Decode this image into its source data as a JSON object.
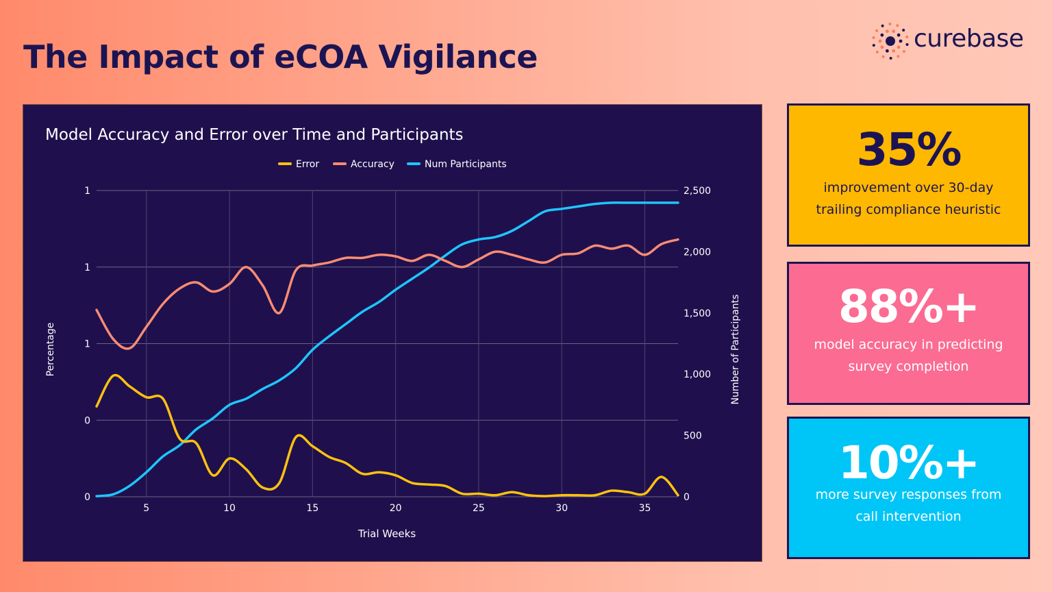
{
  "header": {
    "title": "The Impact of eCOA Vigilance"
  },
  "logo": {
    "text": "curebase",
    "icon": "sunburst-dots-icon",
    "color": "#1c1452",
    "accent": "#ff7a5c"
  },
  "stats": [
    {
      "value": "35%",
      "description": "improvement over 30-day trailing compliance heuristic",
      "color": "#ffb800"
    },
    {
      "value": "88%+",
      "description": "model accuracy in predicting survey completion",
      "color": "#fb6b92"
    },
    {
      "value": "10%+",
      "description": "more survey responses from call intervention",
      "color": "#00c5f7"
    }
  ],
  "chart_data": {
    "type": "line",
    "title": "Model Accuracy and Error over Time and Participants",
    "xlabel": "Trial Weeks",
    "ylabel": "Percentage",
    "y2label": "Number of Participants",
    "xlim": [
      2,
      37
    ],
    "ylim": [
      0,
      1
    ],
    "y2lim": [
      0,
      2500
    ],
    "x_ticks": [
      5,
      10,
      15,
      20,
      25,
      30,
      35
    ],
    "y_ticks": [
      0,
      0.25,
      0.5,
      0.75,
      1
    ],
    "y_tick_labels": [
      "0",
      "0",
      "1",
      "1",
      "1"
    ],
    "y2_ticks": [
      0,
      500,
      1000,
      1500,
      2000,
      2500
    ],
    "y2_tick_labels": [
      "0",
      "500",
      "1,000",
      "1,500",
      "2,000",
      "2,500"
    ],
    "legend_position": "top",
    "grid": true,
    "x": [
      2,
      3,
      4,
      5,
      6,
      7,
      8,
      9,
      10,
      11,
      12,
      13,
      14,
      15,
      16,
      17,
      18,
      19,
      20,
      21,
      22,
      23,
      24,
      25,
      26,
      27,
      28,
      29,
      30,
      31,
      32,
      33,
      34,
      35,
      36,
      37
    ],
    "series": [
      {
        "name": "Error",
        "axis": "left",
        "color": "#ffc20e",
        "values": [
          0.295,
          0.395,
          0.36,
          0.325,
          0.32,
          0.19,
          0.175,
          0.07,
          0.125,
          0.09,
          0.03,
          0.045,
          0.195,
          0.165,
          0.13,
          0.11,
          0.075,
          0.08,
          0.07,
          0.045,
          0.04,
          0.035,
          0.01,
          0.01,
          0.005,
          0.015,
          0.005,
          0.002,
          0.005,
          0.005,
          0.005,
          0.02,
          0.015,
          0.01,
          0.065,
          0.005
        ]
      },
      {
        "name": "Accuracy",
        "axis": "left",
        "color": "#f98c73",
        "values": [
          0.61,
          0.515,
          0.485,
          0.555,
          0.63,
          0.68,
          0.7,
          0.67,
          0.695,
          0.75,
          0.69,
          0.6,
          0.74,
          0.755,
          0.765,
          0.78,
          0.78,
          0.79,
          0.785,
          0.77,
          0.79,
          0.77,
          0.75,
          0.775,
          0.8,
          0.79,
          0.775,
          0.765,
          0.79,
          0.795,
          0.82,
          0.81,
          0.82,
          0.79,
          0.825,
          0.84
        ]
      },
      {
        "name": "Num Participants",
        "axis": "right",
        "color": "#1ec6ff",
        "values": [
          5,
          20,
          90,
          200,
          330,
          420,
          550,
          640,
          750,
          800,
          880,
          950,
          1050,
          1200,
          1310,
          1410,
          1510,
          1590,
          1690,
          1780,
          1870,
          1970,
          2060,
          2100,
          2120,
          2170,
          2250,
          2330,
          2350,
          2370,
          2390,
          2400,
          2400,
          2400,
          2400,
          2400
        ]
      }
    ]
  }
}
